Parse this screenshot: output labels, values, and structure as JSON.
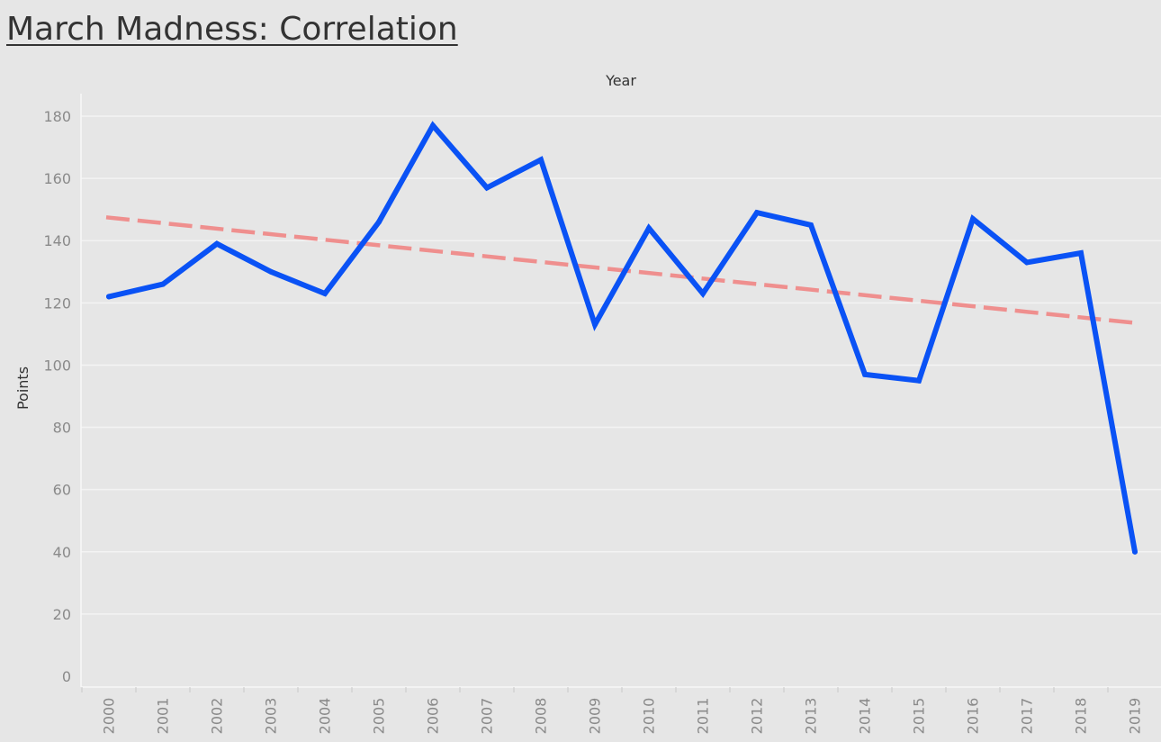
{
  "title": "March Madness: Correlation",
  "chart_data": {
    "type": "line",
    "title": "March Madness: Correlation",
    "xlabel": "Year",
    "ylabel": "Points",
    "categories": [
      "2000",
      "2001",
      "2002",
      "2003",
      "2004",
      "2005",
      "2006",
      "2007",
      "2008",
      "2009",
      "2010",
      "2011",
      "2012",
      "2013",
      "2014",
      "2015",
      "2016",
      "2017",
      "2018",
      "2019"
    ],
    "series": [
      {
        "values": [
          122,
          126,
          139,
          130,
          123,
          146,
          177,
          157,
          166,
          113,
          144,
          123,
          149,
          145,
          97,
          95,
          147,
          133,
          136,
          40
        ],
        "color": "#0a52f5"
      }
    ],
    "trend_line": {
      "start": 147.5,
      "end": 113.5,
      "color": "#ef8f8e",
      "style": "dashed"
    },
    "ylim": [
      0,
      180
    ],
    "yticks": [
      0,
      20,
      40,
      60,
      80,
      100,
      120,
      140,
      160,
      180
    ],
    "grid": true,
    "legend": "none",
    "colors": {
      "background": "#e6e6e6",
      "gridline": "#f3f3f3",
      "title": "#333333",
      "tick_label": "#8a8a8a"
    }
  }
}
